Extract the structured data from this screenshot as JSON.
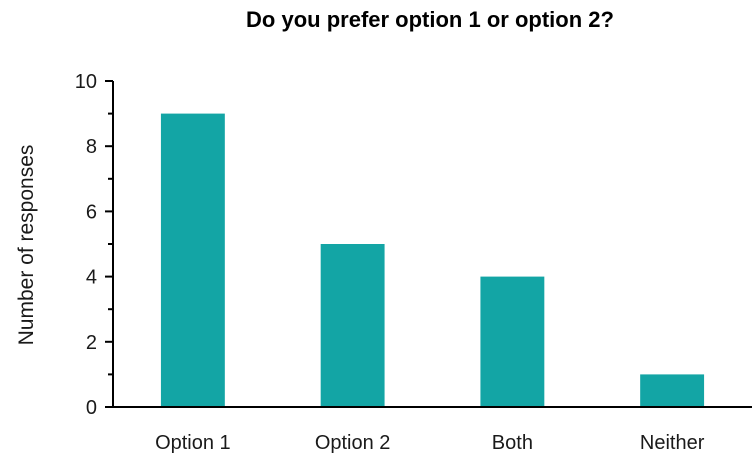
{
  "chart_data": {
    "type": "bar",
    "title": "Do you prefer option 1 or option 2?",
    "xlabel": "",
    "ylabel": "Number of responses",
    "categories": [
      "Option 1",
      "Option 2",
      "Both",
      "Neither"
    ],
    "values": [
      9,
      5,
      4,
      1
    ],
    "ylim": [
      0,
      10
    ],
    "yticks": [
      "0",
      "2",
      "4",
      "6",
      "8",
      "10"
    ],
    "bar_color": "#13a5a5",
    "grid": false,
    "legend": "none"
  }
}
